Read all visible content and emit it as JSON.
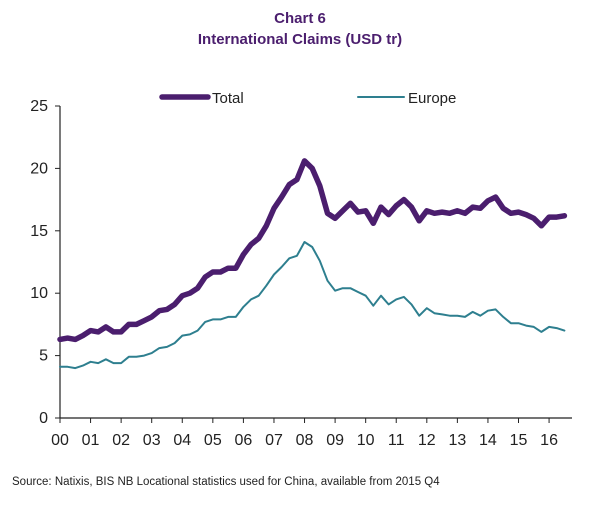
{
  "header": {
    "chart_number": "Chart 6",
    "title": "International Claims (USD tr)"
  },
  "footer": {
    "source": "Source: Natixis, BIS  NB Locational statistics used for China, available from 2015 Q4"
  },
  "colors": {
    "total": "#4b1e6e",
    "europe": "#2e7f8f",
    "axis": "#222222"
  },
  "chart_data": {
    "type": "line",
    "title": "International Claims (USD tr)",
    "xlabel": "",
    "ylabel": "",
    "ylim": [
      0,
      25
    ],
    "yticks": [
      0,
      5,
      10,
      15,
      20,
      25
    ],
    "xlim": [
      2000.0,
      2016.75
    ],
    "xticks": [
      "00",
      "01",
      "02",
      "03",
      "04",
      "05",
      "06",
      "07",
      "08",
      "09",
      "10",
      "11",
      "12",
      "13",
      "14",
      "15",
      "16"
    ],
    "grid": false,
    "legend_position": "top",
    "series": [
      {
        "name": "Total",
        "x": [
          2000.0,
          2000.25,
          2000.5,
          2000.75,
          2001.0,
          2001.25,
          2001.5,
          2001.75,
          2002.0,
          2002.25,
          2002.5,
          2002.75,
          2003.0,
          2003.25,
          2003.5,
          2003.75,
          2004.0,
          2004.25,
          2004.5,
          2004.75,
          2005.0,
          2005.25,
          2005.5,
          2005.75,
          2006.0,
          2006.25,
          2006.5,
          2006.75,
          2007.0,
          2007.25,
          2007.5,
          2007.75,
          2008.0,
          2008.25,
          2008.5,
          2008.75,
          2009.0,
          2009.25,
          2009.5,
          2009.75,
          2010.0,
          2010.25,
          2010.5,
          2010.75,
          2011.0,
          2011.25,
          2011.5,
          2011.75,
          2012.0,
          2012.25,
          2012.5,
          2012.75,
          2013.0,
          2013.25,
          2013.5,
          2013.75,
          2014.0,
          2014.25,
          2014.5,
          2014.75,
          2015.0,
          2015.25,
          2015.5,
          2015.75,
          2016.0,
          2016.25,
          2016.5
        ],
        "values": [
          6.3,
          6.4,
          6.3,
          6.6,
          7.0,
          6.9,
          7.3,
          6.9,
          6.9,
          7.5,
          7.5,
          7.8,
          8.1,
          8.6,
          8.7,
          9.1,
          9.8,
          10.0,
          10.4,
          11.3,
          11.7,
          11.7,
          12.0,
          12.0,
          13.1,
          13.9,
          14.4,
          15.4,
          16.8,
          17.7,
          18.7,
          19.1,
          20.6,
          20.0,
          18.6,
          16.4,
          16.0,
          16.6,
          17.2,
          16.5,
          16.6,
          15.6,
          16.9,
          16.3,
          17.0,
          17.5,
          16.9,
          15.8,
          16.6,
          16.4,
          16.5,
          16.4,
          16.6,
          16.4,
          16.9,
          16.8,
          17.4,
          17.7,
          16.8,
          16.4,
          16.5,
          16.3,
          16.0,
          15.4,
          16.1,
          16.1,
          16.2
        ]
      },
      {
        "name": "Europe",
        "x": [
          2000.0,
          2000.25,
          2000.5,
          2000.75,
          2001.0,
          2001.25,
          2001.5,
          2001.75,
          2002.0,
          2002.25,
          2002.5,
          2002.75,
          2003.0,
          2003.25,
          2003.5,
          2003.75,
          2004.0,
          2004.25,
          2004.5,
          2004.75,
          2005.0,
          2005.25,
          2005.5,
          2005.75,
          2006.0,
          2006.25,
          2006.5,
          2006.75,
          2007.0,
          2007.25,
          2007.5,
          2007.75,
          2008.0,
          2008.25,
          2008.5,
          2008.75,
          2009.0,
          2009.25,
          2009.5,
          2009.75,
          2010.0,
          2010.25,
          2010.5,
          2010.75,
          2011.0,
          2011.25,
          2011.5,
          2011.75,
          2012.0,
          2012.25,
          2012.5,
          2012.75,
          2013.0,
          2013.25,
          2013.5,
          2013.75,
          2014.0,
          2014.25,
          2014.5,
          2014.75,
          2015.0,
          2015.25,
          2015.5,
          2015.75,
          2016.0,
          2016.25,
          2016.5
        ],
        "values": [
          4.1,
          4.1,
          4.0,
          4.2,
          4.5,
          4.4,
          4.7,
          4.4,
          4.4,
          4.9,
          4.9,
          5.0,
          5.2,
          5.6,
          5.7,
          6.0,
          6.6,
          6.7,
          7.0,
          7.7,
          7.9,
          7.9,
          8.1,
          8.1,
          8.9,
          9.5,
          9.8,
          10.6,
          11.5,
          12.1,
          12.8,
          13.0,
          14.1,
          13.7,
          12.6,
          11.0,
          10.2,
          10.4,
          10.4,
          10.1,
          9.8,
          9.0,
          9.8,
          9.1,
          9.5,
          9.7,
          9.1,
          8.2,
          8.8,
          8.4,
          8.3,
          8.2,
          8.2,
          8.1,
          8.5,
          8.2,
          8.6,
          8.7,
          8.1,
          7.6,
          7.6,
          7.4,
          7.3,
          6.9,
          7.3,
          7.2,
          7.0
        ]
      }
    ]
  }
}
